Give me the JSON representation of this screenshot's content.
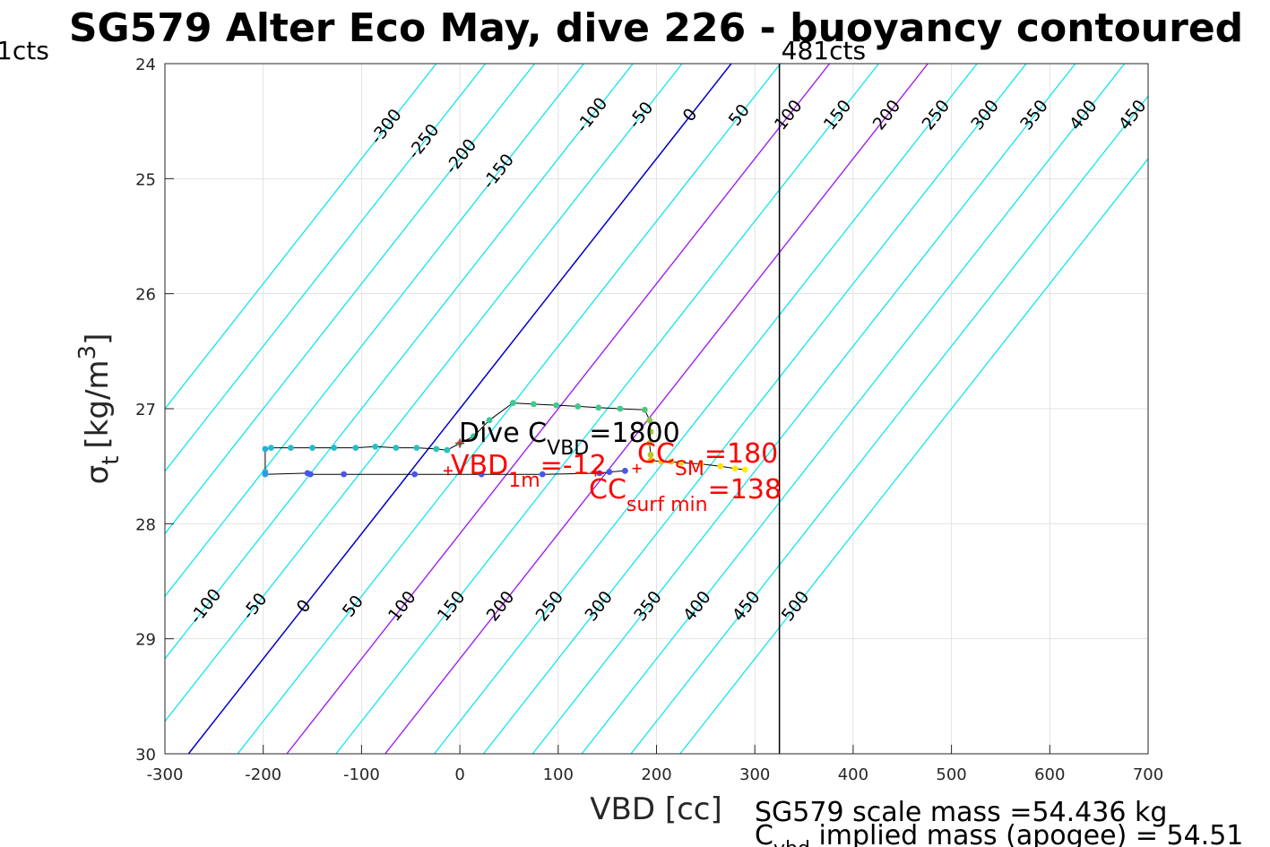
{
  "chart_data": {
    "type": "scatter",
    "title": "SG579 Alter Eco May, dive 226 - buoyancy contoured",
    "xlabel": "VBD [cc]",
    "ylabel": "σ",
    "ylabel_sub": "t",
    "ylabel_unit": "[kg/m",
    "ylabel_sup": "3",
    "ylabel_close": "]",
    "xlim": [
      -300,
      700
    ],
    "ylim": [
      24,
      30
    ],
    "y_reversed": true,
    "grid": true,
    "xticks": [
      "-300",
      "-200",
      "-100",
      "0",
      "100",
      "200",
      "300",
      "400",
      "500",
      "600",
      "700"
    ],
    "yticks": [
      "24",
      "25",
      "26",
      "27",
      "28",
      "29",
      "30"
    ],
    "corner_left_label": "1cts",
    "vline": {
      "x": 325,
      "label": "481cts",
      "color": "#000000"
    },
    "contours": {
      "levels": [
        -300,
        -250,
        -200,
        -150,
        -100,
        -50,
        0,
        50,
        100,
        150,
        200,
        250,
        300,
        350,
        400,
        450,
        500
      ],
      "color": "#00e5ee",
      "zero_color": "#0000cd",
      "highlight_levels": [
        100,
        200
      ],
      "highlight_color": "#a020f0",
      "top_label_levels": [
        "-300",
        "-250",
        "-200",
        "-150",
        "-100",
        "-50",
        "0",
        "50",
        "100",
        "150",
        "200",
        "250",
        "300",
        "350",
        "400",
        "450",
        "500"
      ],
      "bottom_label_levels": [
        "-100",
        "-50",
        "0",
        "50",
        "100",
        "150",
        "200",
        "250",
        "300",
        "350",
        "400",
        "450",
        "500"
      ]
    },
    "series": [
      {
        "x": [
          -198,
          -198,
          -192,
          -172,
          -150,
          -128,
          -106,
          -86,
          -65,
          -44,
          -24,
          -13,
          0,
          14,
          30,
          54,
          75,
          98,
          120,
          141,
          163,
          188,
          193,
          194,
          193,
          194,
          194
        ],
        "y": [
          27.55,
          27.35,
          27.34,
          27.34,
          27.34,
          27.34,
          27.34,
          27.33,
          27.34,
          27.34,
          27.35,
          27.36,
          27.3,
          27.24,
          27.1,
          26.95,
          26.96,
          26.97,
          26.98,
          26.99,
          27.0,
          27.01,
          27.1,
          27.2,
          27.3,
          27.4,
          27.45
        ],
        "colors": [
          "#21aedc",
          "#23b1d8",
          "#25bccc",
          "#25bccc",
          "#25bccc",
          "#25bccc",
          "#25bccc",
          "#26c0c6",
          "#26c0c6",
          "#27c2c0",
          "#28c4b8",
          "#28c4b8",
          "#2cc6ad",
          "#30c8a0",
          "#36c997",
          "#3fc98f",
          "#3fc98f",
          "#3fc98f",
          "#3fc98f",
          "#3fc98f",
          "#3fc98f",
          "#55c47a",
          "#8cc84a",
          "#9cc83c",
          "#a9c830",
          "#b8c620",
          "#e6c80e"
        ]
      },
      {
        "x": [
          195,
          205,
          215,
          225,
          245,
          265,
          280,
          290
        ],
        "y": [
          27.45,
          27.46,
          27.46,
          27.47,
          27.48,
          27.5,
          27.52,
          27.53
        ],
        "colors": [
          "#ffb400",
          "#f5c30b",
          "#f0c814",
          "#f5d21e",
          "#f8dc1a",
          "#fae014",
          "#fae80f",
          "#fcf00a"
        ]
      },
      {
        "x": [
          -198,
          -155,
          -152,
          -118,
          -46,
          22,
          84,
          142,
          152,
          168
        ],
        "y": [
          27.57,
          27.56,
          27.57,
          27.57,
          27.57,
          27.57,
          27.57,
          27.56,
          27.55,
          27.54
        ],
        "colors": [
          "#2a9de6",
          "#4a56e6",
          "#4a56e6",
          "#4a56e6",
          "#4a56e6",
          "#4a56e6",
          "#4a56e6",
          "#4a56e6",
          "#4a56e6",
          "#4a56e6"
        ]
      }
    ],
    "annotations": {
      "dive_label": "Dive C",
      "dive_sub": "VBD",
      "dive_value": "=1800",
      "vbd_label": "VBD",
      "vbd_sub": "1m",
      "vbd_value": "=-12",
      "ccsm_label": "CC",
      "ccsm_sub": "SM",
      "ccsm_value": "=180",
      "ccsurf_label": "CC",
      "ccsurf_sub": "surf min",
      "ccsurf_value": "=138",
      "text_color": "#000000",
      "red_color": "#ff0000"
    },
    "markers": [
      {
        "x": 0,
        "y": 27.3
      },
      {
        "x": -12,
        "y": 27.54
      },
      {
        "x": 180,
        "y": 27.52
      },
      {
        "x": 138,
        "y": 27.55
      }
    ],
    "footer": {
      "line1": "SG579 scale mass =54.436 kg",
      "line2_label": "C",
      "line2_sub": "vbd",
      "line2_value": " implied mass (apogee) = 54.51"
    }
  }
}
